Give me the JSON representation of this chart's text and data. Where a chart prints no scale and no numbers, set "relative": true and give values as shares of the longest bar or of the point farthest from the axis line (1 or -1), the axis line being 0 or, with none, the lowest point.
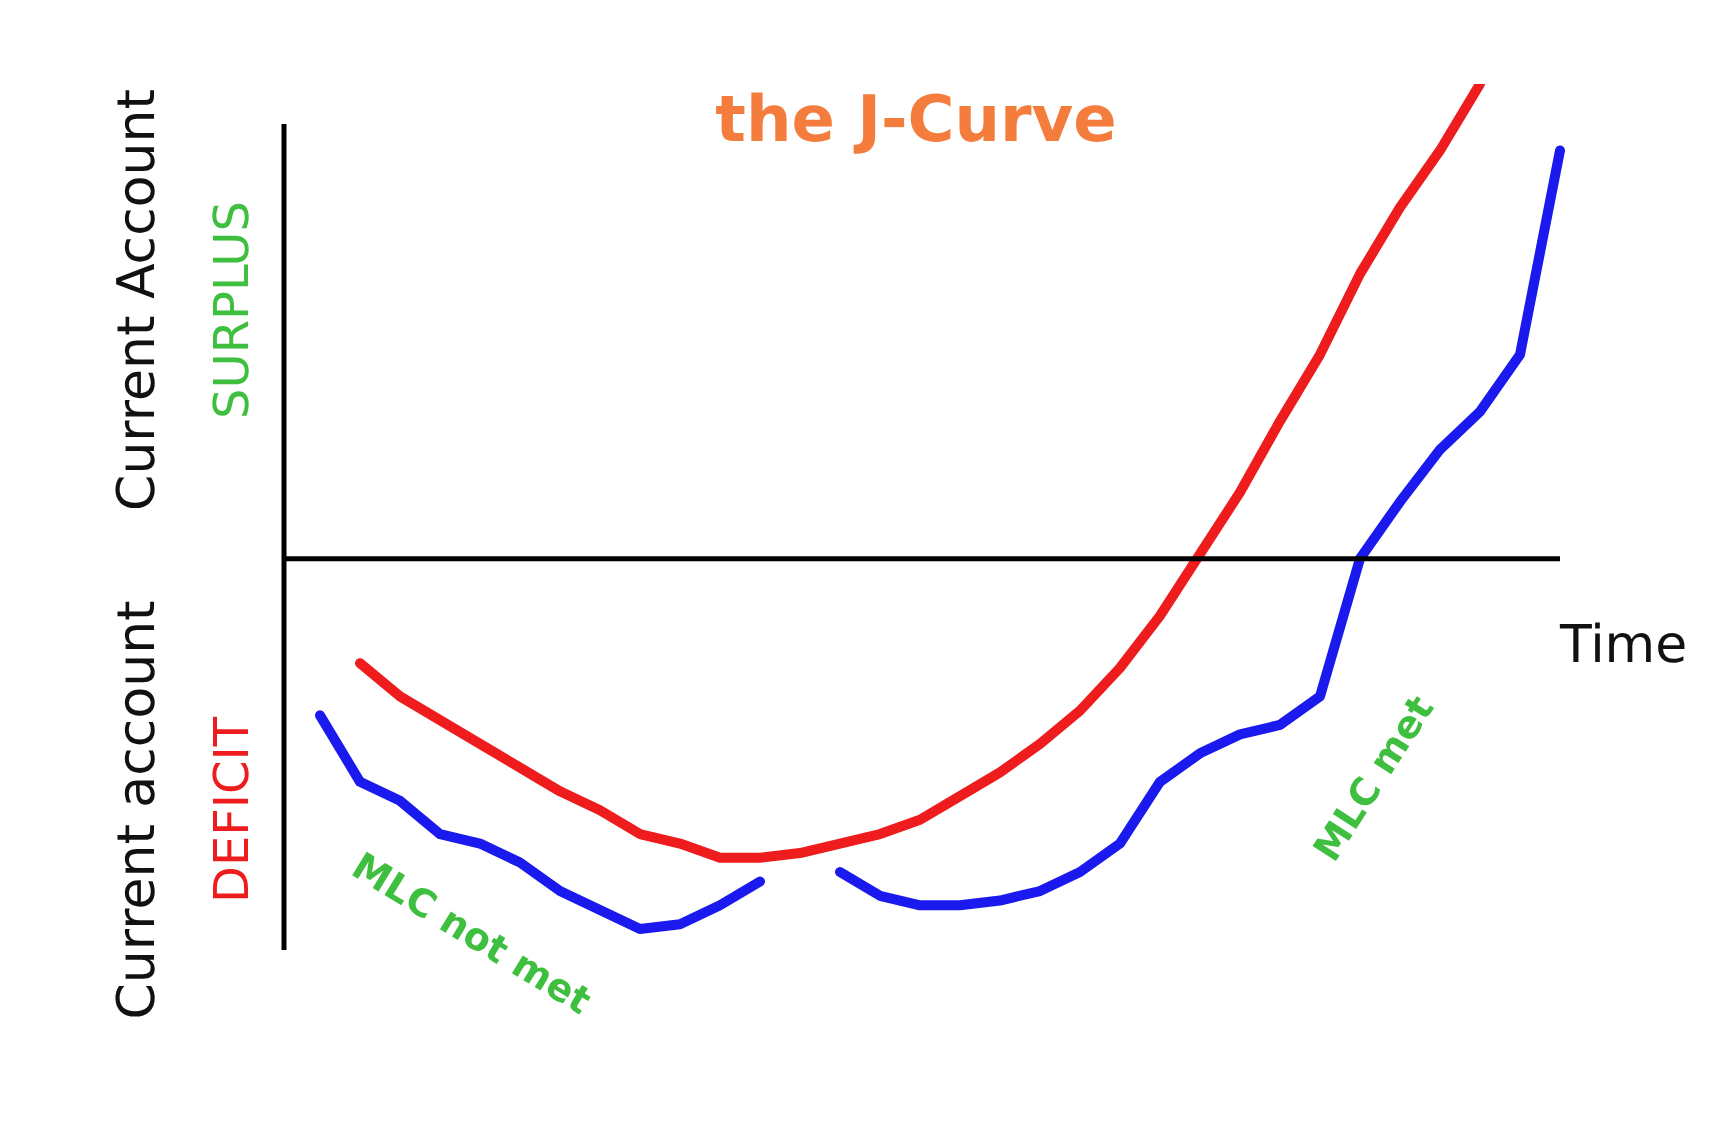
{
  "chart_data": {
    "type": "line",
    "title": "the J-Curve",
    "xlabel": "Time",
    "ylabel": "Current account",
    "annotations": [
      "Current Account",
      "SURPLUS",
      "DEFICIT",
      "MLC not met",
      "MLC met"
    ],
    "categories": [
      null,
      null,
      null,
      null,
      null,
      null,
      null,
      null,
      null,
      null,
      null,
      null,
      null,
      null,
      null,
      null,
      null,
      null,
      null,
      null,
      null,
      null,
      null,
      null,
      null,
      null,
      null,
      null,
      null,
      null,
      null,
      null
    ],
    "series": [
      {
        "color": "#ee1c1c",
        "values": [
          null,
          -0.22,
          -0.29,
          -0.34,
          -0.39,
          -0.44,
          -0.49,
          -0.53,
          -0.58,
          -0.6,
          -0.63,
          -0.63,
          -0.62,
          -0.6,
          -0.58,
          -0.55,
          -0.5,
          -0.45,
          -0.39,
          -0.32,
          -0.23,
          -0.12,
          0.01,
          0.14,
          0.29,
          0.43,
          0.6,
          0.74,
          0.86,
          1,
          null,
          null
        ]
      },
      {
        "color": "#1a1aee",
        "values": [
          -0.33,
          -0.47,
          -0.51,
          -0.58,
          -0.6,
          -0.64,
          -0.7,
          -0.74,
          -0.78,
          -0.77,
          -0.73,
          -0.68,
          null,
          -0.66,
          -0.71,
          -0.73,
          -0.73,
          -0.72,
          -0.7,
          -0.66,
          -0.6,
          -0.47,
          -0.41,
          -0.37,
          -0.35,
          -0.29,
          0,
          0.12,
          0.23,
          0.31,
          0.43,
          0.86
        ]
      }
    ],
    "relative": true,
    "legend": false,
    "grid": false,
    "marker": "none"
  }
}
